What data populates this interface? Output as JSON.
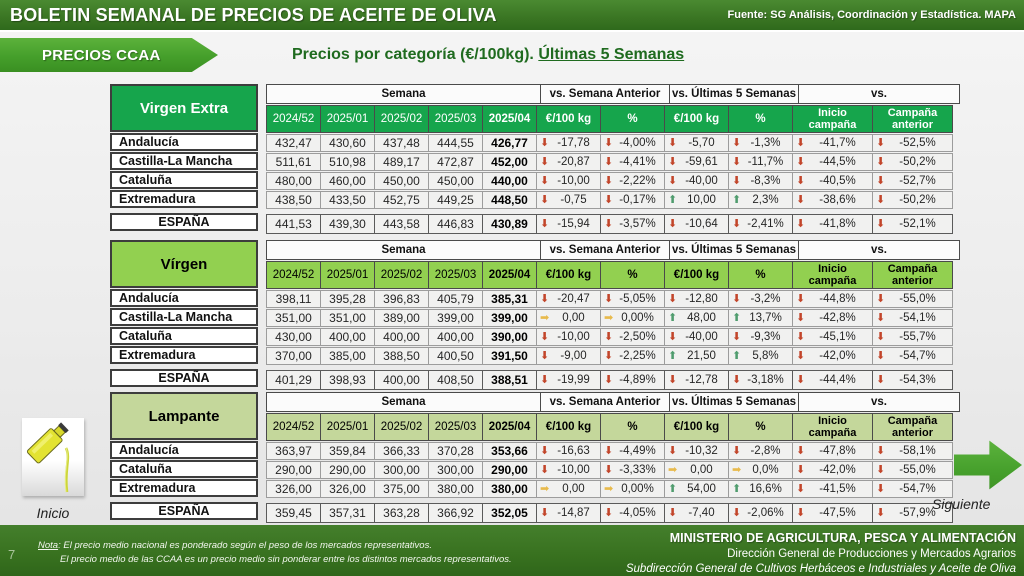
{
  "top_bar": {
    "title": "BOLETIN SEMANAL DE PRECIOS DE ACEITE DE OLIVA",
    "source": "Fuente: SG Análisis, Coordinación y Estadística. MAPA"
  },
  "badge_label": "PRECIOS CCAA",
  "subtitle": {
    "prefix": "Precios por categoría (€/100kg). ",
    "underlined": "Últimas 5 Semanas"
  },
  "columns": {
    "semana": "Semana",
    "vs_week": "vs. Semana Anterior",
    "vs_5w": "vs. Últimas 5 Semanas",
    "vs": "vs.",
    "weeks": [
      "2024/52",
      "2025/01",
      "2025/02",
      "2025/03",
      "2025/04"
    ],
    "eur": "€/100 kg",
    "pct": "%",
    "inicio_campana": "Inicio campaña",
    "campana_anterior": "Campaña anterior"
  },
  "icons": {
    "down": {
      "glyph": "⬇",
      "color": "#c2452a",
      "name": "arrow-down-icon"
    },
    "up": {
      "glyph": "⬆",
      "color": "#4f9c6d",
      "name": "arrow-up-icon"
    },
    "flat": {
      "glyph": "➡",
      "color": "#e8ba4b",
      "name": "arrow-right-icon"
    }
  },
  "tables": [
    {
      "category": "Virgen Extra",
      "header_bg": "#16a54c",
      "header_text": "#ffffff",
      "rows": [
        {
          "region": "Andalucía",
          "weeks": [
            "432,47",
            "430,60",
            "437,48",
            "444,55",
            "426,77"
          ],
          "changes": [
            {
              "dir": "down",
              "val": "-17,78"
            },
            {
              "dir": "down",
              "val": "-4,00%"
            },
            {
              "dir": "down",
              "val": "-5,70"
            },
            {
              "dir": "down",
              "val": "-1,3%"
            },
            {
              "dir": "down",
              "val": "-41,7%"
            },
            {
              "dir": "down",
              "val": "-52,5%"
            }
          ]
        },
        {
          "region": "Castilla-La Mancha",
          "weeks": [
            "511,61",
            "510,98",
            "489,17",
            "472,87",
            "452,00"
          ],
          "changes": [
            {
              "dir": "down",
              "val": "-20,87"
            },
            {
              "dir": "down",
              "val": "-4,41%"
            },
            {
              "dir": "down",
              "val": "-59,61"
            },
            {
              "dir": "down",
              "val": "-11,7%"
            },
            {
              "dir": "down",
              "val": "-44,5%"
            },
            {
              "dir": "down",
              "val": "-50,2%"
            }
          ]
        },
        {
          "region": "Cataluña",
          "weeks": [
            "480,00",
            "460,00",
            "450,00",
            "450,00",
            "440,00"
          ],
          "changes": [
            {
              "dir": "down",
              "val": "-10,00"
            },
            {
              "dir": "down",
              "val": "-2,22%"
            },
            {
              "dir": "down",
              "val": "-40,00"
            },
            {
              "dir": "down",
              "val": "-8,3%"
            },
            {
              "dir": "down",
              "val": "-40,5%"
            },
            {
              "dir": "down",
              "val": "-52,7%"
            }
          ]
        },
        {
          "region": "Extremadura",
          "weeks": [
            "438,50",
            "433,50",
            "452,75",
            "449,25",
            "448,50"
          ],
          "changes": [
            {
              "dir": "down",
              "val": "-0,75"
            },
            {
              "dir": "down",
              "val": "-0,17%"
            },
            {
              "dir": "up",
              "val": "10,00"
            },
            {
              "dir": "up",
              "val": "2,3%"
            },
            {
              "dir": "down",
              "val": "-38,6%"
            },
            {
              "dir": "down",
              "val": "-50,2%"
            }
          ]
        }
      ],
      "espana": {
        "region": "ESPAÑA",
        "weeks": [
          "441,53",
          "439,30",
          "443,58",
          "446,83",
          "430,89"
        ],
        "changes": [
          {
            "dir": "down",
            "val": "-15,94"
          },
          {
            "dir": "down",
            "val": "-3,57%"
          },
          {
            "dir": "down",
            "val": "-10,64"
          },
          {
            "dir": "down",
            "val": "-2,41%"
          },
          {
            "dir": "down",
            "val": "-41,8%"
          },
          {
            "dir": "down",
            "val": "-52,1%"
          }
        ]
      }
    },
    {
      "category": "Vírgen",
      "header_bg": "#92d050",
      "header_text": "#000000",
      "rows": [
        {
          "region": "Andalucía",
          "weeks": [
            "398,11",
            "395,28",
            "396,83",
            "405,79",
            "385,31"
          ],
          "changes": [
            {
              "dir": "down",
              "val": "-20,47"
            },
            {
              "dir": "down",
              "val": "-5,05%"
            },
            {
              "dir": "down",
              "val": "-12,80"
            },
            {
              "dir": "down",
              "val": "-3,2%"
            },
            {
              "dir": "down",
              "val": "-44,8%"
            },
            {
              "dir": "down",
              "val": "-55,0%"
            }
          ]
        },
        {
          "region": "Castilla-La Mancha",
          "weeks": [
            "351,00",
            "351,00",
            "389,00",
            "399,00",
            "399,00"
          ],
          "changes": [
            {
              "dir": "flat",
              "val": "0,00"
            },
            {
              "dir": "flat",
              "val": "0,00%"
            },
            {
              "dir": "up",
              "val": "48,00"
            },
            {
              "dir": "up",
              "val": "13,7%"
            },
            {
              "dir": "down",
              "val": "-42,8%"
            },
            {
              "dir": "down",
              "val": "-54,1%"
            }
          ]
        },
        {
          "region": "Cataluña",
          "weeks": [
            "430,00",
            "400,00",
            "400,00",
            "400,00",
            "390,00"
          ],
          "changes": [
            {
              "dir": "down",
              "val": "-10,00"
            },
            {
              "dir": "down",
              "val": "-2,50%"
            },
            {
              "dir": "down",
              "val": "-40,00"
            },
            {
              "dir": "down",
              "val": "-9,3%"
            },
            {
              "dir": "down",
              "val": "-45,1%"
            },
            {
              "dir": "down",
              "val": "-55,7%"
            }
          ]
        },
        {
          "region": "Extremadura",
          "weeks": [
            "370,00",
            "385,00",
            "388,50",
            "400,50",
            "391,50"
          ],
          "changes": [
            {
              "dir": "down",
              "val": "-9,00"
            },
            {
              "dir": "down",
              "val": "-2,25%"
            },
            {
              "dir": "up",
              "val": "21,50"
            },
            {
              "dir": "up",
              "val": "5,8%"
            },
            {
              "dir": "down",
              "val": "-42,0%"
            },
            {
              "dir": "down",
              "val": "-54,7%"
            }
          ]
        }
      ],
      "espana": {
        "region": "ESPAÑA",
        "weeks": [
          "401,29",
          "398,93",
          "400,00",
          "408,50",
          "388,51"
        ],
        "changes": [
          {
            "dir": "down",
            "val": "-19,99"
          },
          {
            "dir": "down",
            "val": "-4,89%"
          },
          {
            "dir": "down",
            "val": "-12,78"
          },
          {
            "dir": "down",
            "val": "-3,18%"
          },
          {
            "dir": "down",
            "val": "-44,4%"
          },
          {
            "dir": "down",
            "val": "-54,3%"
          }
        ]
      }
    },
    {
      "category": "Lampante",
      "header_bg": "#c4d79b",
      "header_text": "#000000",
      "rows": [
        {
          "region": "Andalucía",
          "weeks": [
            "363,97",
            "359,84",
            "366,33",
            "370,28",
            "353,66"
          ],
          "changes": [
            {
              "dir": "down",
              "val": "-16,63"
            },
            {
              "dir": "down",
              "val": "-4,49%"
            },
            {
              "dir": "down",
              "val": "-10,32"
            },
            {
              "dir": "down",
              "val": "-2,8%"
            },
            {
              "dir": "down",
              "val": "-47,8%"
            },
            {
              "dir": "down",
              "val": "-58,1%"
            }
          ]
        },
        {
          "region": "Cataluña",
          "weeks": [
            "290,00",
            "290,00",
            "300,00",
            "300,00",
            "290,00"
          ],
          "changes": [
            {
              "dir": "down",
              "val": "-10,00"
            },
            {
              "dir": "down",
              "val": "-3,33%"
            },
            {
              "dir": "flat",
              "val": "0,00"
            },
            {
              "dir": "flat",
              "val": "0,0%"
            },
            {
              "dir": "down",
              "val": "-42,0%"
            },
            {
              "dir": "down",
              "val": "-55,0%"
            }
          ]
        },
        {
          "region": "Extremadura",
          "weeks": [
            "326,00",
            "326,00",
            "375,00",
            "380,00",
            "380,00"
          ],
          "changes": [
            {
              "dir": "flat",
              "val": "0,00"
            },
            {
              "dir": "flat",
              "val": "0,00%"
            },
            {
              "dir": "up",
              "val": "54,00"
            },
            {
              "dir": "up",
              "val": "16,6%"
            },
            {
              "dir": "down",
              "val": "-41,5%"
            },
            {
              "dir": "down",
              "val": "-54,7%"
            }
          ]
        }
      ],
      "espana": {
        "region": "ESPAÑA",
        "weeks": [
          "359,45",
          "357,31",
          "363,28",
          "366,92",
          "352,05"
        ],
        "changes": [
          {
            "dir": "down",
            "val": "-14,87"
          },
          {
            "dir": "down",
            "val": "-4,05%"
          },
          {
            "dir": "down",
            "val": "-7,40"
          },
          {
            "dir": "down",
            "val": "-2,06%"
          },
          {
            "dir": "down",
            "val": "-47,5%"
          },
          {
            "dir": "down",
            "val": "-57,9%"
          }
        ]
      }
    }
  ],
  "nav": {
    "inicio": "Inicio",
    "siguiente": "Siguiente"
  },
  "footer": {
    "page_number": "7",
    "nota_label": "Nota",
    "nota_line1_rest": ": El precio medio nacional es ponderado según el peso de los mercados representativos.",
    "nota_line2": "El precio medio de las CCAA es un precio medio sin ponderar entre los distintos mercados representativos.",
    "ministry": "MINISTERIO DE AGRICULTURA, PESCA Y ALIMENTACIÓN",
    "direction": "Dirección General de Producciones y Mercados Agrarios",
    "subdirection": "Subdirección General de Cultivos Herbáceos e Industriales y Aceite de Oliva"
  }
}
